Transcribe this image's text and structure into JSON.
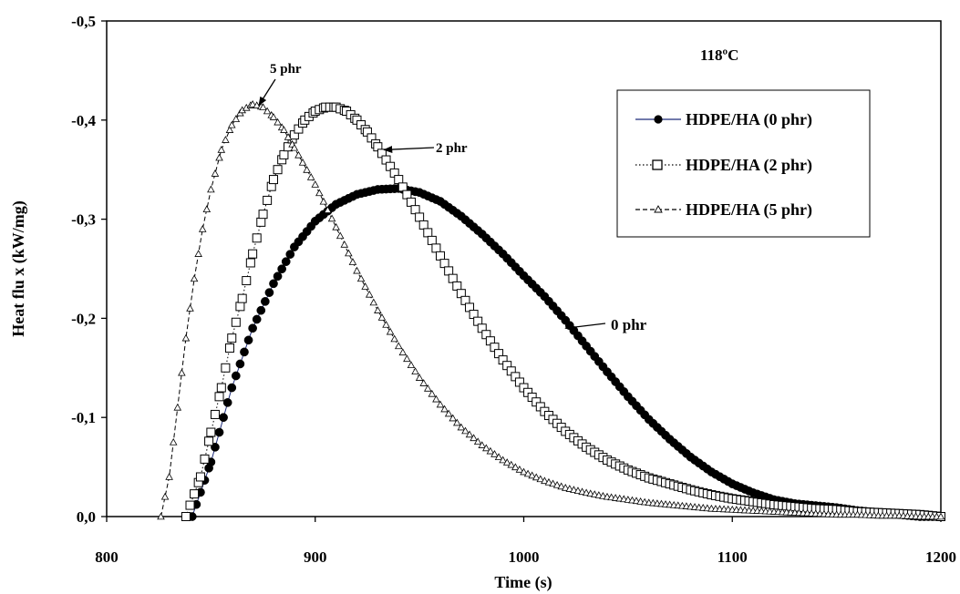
{
  "chart_data": {
    "type": "scatter",
    "title": "",
    "xlabel": "Time (s)",
    "ylabel": "Heat flu x (kW/mg)",
    "xlim": [
      800,
      1200
    ],
    "ylim": [
      0.0,
      -0.5
    ],
    "y_axis_inverted": true,
    "x_ticks": [
      800,
      900,
      1000,
      1100,
      1200
    ],
    "x_tick_labels": [
      "800",
      "900",
      "1000",
      "1100",
      "1200"
    ],
    "y_ticks": [
      0.0,
      -0.1,
      -0.2,
      -0.3,
      -0.4,
      -0.5
    ],
    "y_tick_labels": [
      "0,0",
      "-0,1",
      "-0,2",
      "-0,3",
      "-0,4",
      "-0,5"
    ],
    "grid": false,
    "legend_position": "upper right",
    "temperature_label": "118ºC",
    "series": [
      {
        "name": "HDPE/HA (0 phr)",
        "marker": "filled-circle",
        "line": "solid",
        "color": "#1c2a7a",
        "points": [
          [
            841,
            0.0
          ],
          [
            850,
            -0.055
          ],
          [
            860,
            -0.13
          ],
          [
            870,
            -0.19
          ],
          [
            880,
            -0.235
          ],
          [
            890,
            -0.272
          ],
          [
            900,
            -0.298
          ],
          [
            910,
            -0.315
          ],
          [
            920,
            -0.325
          ],
          [
            930,
            -0.33
          ],
          [
            940,
            -0.331
          ],
          [
            950,
            -0.327
          ],
          [
            960,
            -0.318
          ],
          [
            970,
            -0.303
          ],
          [
            980,
            -0.285
          ],
          [
            990,
            -0.265
          ],
          [
            1000,
            -0.243
          ],
          [
            1010,
            -0.222
          ],
          [
            1020,
            -0.198
          ],
          [
            1030,
            -0.172
          ],
          [
            1040,
            -0.146
          ],
          [
            1050,
            -0.121
          ],
          [
            1060,
            -0.098
          ],
          [
            1070,
            -0.078
          ],
          [
            1080,
            -0.06
          ],
          [
            1090,
            -0.045
          ],
          [
            1100,
            -0.033
          ],
          [
            1110,
            -0.024
          ],
          [
            1120,
            -0.017
          ],
          [
            1130,
            -0.013
          ],
          [
            1140,
            -0.011
          ],
          [
            1150,
            -0.009
          ],
          [
            1160,
            -0.006
          ],
          [
            1170,
            -0.004
          ],
          [
            1180,
            -0.002
          ],
          [
            1190,
            0.0
          ],
          [
            1200,
            0.0
          ]
        ]
      },
      {
        "name": "HDPE/HA (2 phr)",
        "marker": "open-square",
        "line": "dotted",
        "color": "#000000",
        "points": [
          [
            838,
            0.0
          ],
          [
            845,
            -0.04
          ],
          [
            850,
            -0.085
          ],
          [
            855,
            -0.13
          ],
          [
            860,
            -0.18
          ],
          [
            865,
            -0.22
          ],
          [
            870,
            -0.265
          ],
          [
            875,
            -0.305
          ],
          [
            880,
            -0.34
          ],
          [
            885,
            -0.365
          ],
          [
            890,
            -0.385
          ],
          [
            895,
            -0.4
          ],
          [
            900,
            -0.409
          ],
          [
            905,
            -0.413
          ],
          [
            910,
            -0.413
          ],
          [
            915,
            -0.409
          ],
          [
            920,
            -0.4
          ],
          [
            925,
            -0.388
          ],
          [
            930,
            -0.373
          ],
          [
            940,
            -0.34
          ],
          [
            950,
            -0.302
          ],
          [
            960,
            -0.263
          ],
          [
            970,
            -0.225
          ],
          [
            980,
            -0.19
          ],
          [
            990,
            -0.158
          ],
          [
            1000,
            -0.13
          ],
          [
            1010,
            -0.106
          ],
          [
            1020,
            -0.086
          ],
          [
            1030,
            -0.07
          ],
          [
            1040,
            -0.057
          ],
          [
            1050,
            -0.047
          ],
          [
            1060,
            -0.039
          ],
          [
            1070,
            -0.033
          ],
          [
            1080,
            -0.027
          ],
          [
            1090,
            -0.022
          ],
          [
            1100,
            -0.018
          ],
          [
            1110,
            -0.015
          ],
          [
            1120,
            -0.012
          ],
          [
            1130,
            -0.01
          ],
          [
            1140,
            -0.008
          ],
          [
            1150,
            -0.007
          ],
          [
            1160,
            -0.005
          ],
          [
            1170,
            -0.004
          ],
          [
            1180,
            -0.003
          ],
          [
            1190,
            -0.002
          ],
          [
            1200,
            0.0
          ]
        ]
      },
      {
        "name": "HDPE/HA (5 phr)",
        "marker": "open-triangle",
        "line": "dashed",
        "color": "#000000",
        "points": [
          [
            826,
            0.0
          ],
          [
            830,
            -0.04
          ],
          [
            834,
            -0.11
          ],
          [
            838,
            -0.18
          ],
          [
            842,
            -0.24
          ],
          [
            846,
            -0.29
          ],
          [
            850,
            -0.33
          ],
          [
            855,
            -0.37
          ],
          [
            860,
            -0.395
          ],
          [
            865,
            -0.41
          ],
          [
            870,
            -0.416
          ],
          [
            875,
            -0.413
          ],
          [
            880,
            -0.403
          ],
          [
            885,
            -0.39
          ],
          [
            890,
            -0.372
          ],
          [
            900,
            -0.335
          ],
          [
            910,
            -0.292
          ],
          [
            920,
            -0.248
          ],
          [
            930,
            -0.208
          ],
          [
            940,
            -0.172
          ],
          [
            950,
            -0.14
          ],
          [
            960,
            -0.113
          ],
          [
            970,
            -0.09
          ],
          [
            980,
            -0.072
          ],
          [
            990,
            -0.057
          ],
          [
            1000,
            -0.045
          ],
          [
            1010,
            -0.036
          ],
          [
            1020,
            -0.029
          ],
          [
            1030,
            -0.024
          ],
          [
            1040,
            -0.02
          ],
          [
            1050,
            -0.017
          ],
          [
            1060,
            -0.014
          ],
          [
            1070,
            -0.012
          ],
          [
            1080,
            -0.01
          ],
          [
            1090,
            -0.008
          ],
          [
            1100,
            -0.007
          ],
          [
            1110,
            -0.006
          ],
          [
            1120,
            -0.005
          ],
          [
            1130,
            -0.004
          ],
          [
            1140,
            -0.003
          ],
          [
            1150,
            -0.002
          ],
          [
            1160,
            -0.002
          ],
          [
            1170,
            -0.001
          ],
          [
            1180,
            -0.001
          ],
          [
            1190,
            0.0
          ],
          [
            1200,
            0.0
          ]
        ]
      }
    ],
    "annotations": [
      {
        "text": "5 phr",
        "target": [
          873,
          -0.415
        ]
      },
      {
        "text": "2 phr",
        "target": [
          933,
          -0.37
        ]
      },
      {
        "text": "0 phr",
        "target": [
          1020,
          -0.19
        ]
      }
    ]
  }
}
